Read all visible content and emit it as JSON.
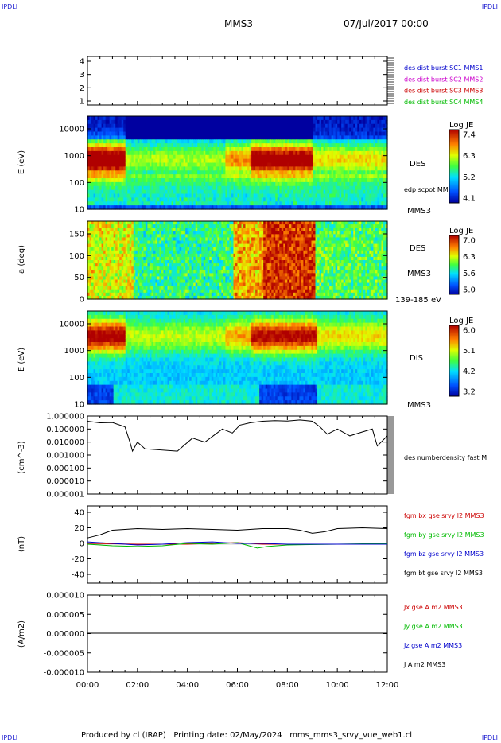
{
  "corner_label": "IPDLI",
  "header": {
    "mission": "MMS3",
    "datetime": "07/Jul/2017 00:00"
  },
  "footer": {
    "text": "Produced by cl (IRAP)   Printing date: 02/May/2024   mms_mms3_srvy_vue_web1.cl"
  },
  "chart_data": [
    {
      "type": "line",
      "panel": "burst-indicator",
      "ylabel": "",
      "ylim": [
        0.5,
        4.5
      ],
      "yticks": [
        "4",
        "3",
        "2",
        "1"
      ],
      "legend": [
        {
          "label": "des dist burst SC1 MMS1",
          "color": "#0000cc"
        },
        {
          "label": "des dist burst SC2 MMS2",
          "color": "#cc00cc"
        },
        {
          "label": "des dist burst SC3 MMS3",
          "color": "#cc0000"
        },
        {
          "label": "des dist burst SC4 MMS4",
          "color": "#00bb00"
        }
      ],
      "series": []
    },
    {
      "type": "heatmap",
      "panel": "des-energy-spectrogram",
      "ylabel": "E (eV)",
      "yscale": "log",
      "yticks": [
        "10000",
        "1000",
        "100",
        "10"
      ],
      "right_label": "DES",
      "right_label_2": "edp scpot MMS3",
      "bottom_right": "MMS3",
      "colorbar": {
        "title": "Log JE",
        "ticks": [
          "7.4",
          "6.3",
          "5.2",
          "4.1"
        ]
      }
    },
    {
      "type": "heatmap",
      "panel": "des-pitch-angle",
      "ylabel": "a (deg)",
      "yticks": [
        "150",
        "100",
        "50",
        "0"
      ],
      "ylim": [
        0,
        180
      ],
      "right_label": "DES",
      "right_label_2": "MMS3",
      "bottom_right": "139-185 eV",
      "colorbar": {
        "title": "Log JE",
        "ticks": [
          "7.0",
          "6.3",
          "5.6",
          "5.0"
        ]
      }
    },
    {
      "type": "heatmap",
      "panel": "dis-energy-spectrogram",
      "ylabel": "E (eV)",
      "yscale": "log",
      "yticks": [
        "10000",
        "1000",
        "100",
        "10"
      ],
      "right_label": "DIS",
      "bottom_right": "MMS3",
      "colorbar": {
        "title": "Log JE",
        "ticks": [
          "6.0",
          "5.1",
          "4.2",
          "3.2"
        ]
      }
    },
    {
      "type": "line",
      "panel": "des-density",
      "ylabel": "(cm^-3)",
      "yscale": "log",
      "yticks": [
        "1.000000",
        "0.100000",
        "0.010000",
        "0.001000",
        "0.000100",
        "0.000010",
        "0.000001"
      ],
      "legend": [
        {
          "label": "des numberdensity fast M",
          "color": "#000000"
        }
      ],
      "series": [
        {
          "x": [
            0,
            0.5,
            1.0,
            1.5,
            1.7,
            1.8,
            2.0,
            2.3,
            3.6,
            4.2,
            4.7,
            5.4,
            5.8,
            6.1,
            6.5,
            7.0,
            7.5,
            8.0,
            8.5,
            9.0,
            9.3,
            9.6,
            10.0,
            10.5,
            11.0,
            11.4,
            11.6,
            12.0
          ],
          "y": [
            0.4,
            0.3,
            0.32,
            0.15,
            0.01,
            0.002,
            0.01,
            0.003,
            0.002,
            0.02,
            0.01,
            0.1,
            0.05,
            0.2,
            0.3,
            0.4,
            0.45,
            0.42,
            0.5,
            0.4,
            0.15,
            0.04,
            0.1,
            0.03,
            0.06,
            0.1,
            0.005,
            0.03
          ]
        }
      ]
    },
    {
      "type": "line",
      "panel": "fgm-magnetic-field",
      "ylabel": "(nT)",
      "ylim": [
        -50,
        50
      ],
      "yticks": [
        "40",
        "20",
        "0",
        "-20",
        "-40"
      ],
      "legend": [
        {
          "label": "fgm bx gse srvy l2 MMS3",
          "color": "#cc0000"
        },
        {
          "label": "fgm by gse srvy l2 MMS3",
          "color": "#00bb00"
        },
        {
          "label": "fgm bz gse srvy l2 MMS3",
          "color": "#0000cc"
        },
        {
          "label": "fgm bt gse srvy l2 MMS3",
          "color": "#000000"
        }
      ],
      "series": [
        {
          "name": "fgm bt gse srvy l2 MMS3",
          "color": "#000000",
          "x": [
            0,
            0.5,
            1.0,
            1.5,
            2.0,
            3.0,
            4.0,
            5.0,
            6.0,
            6.5,
            7.0,
            7.5,
            8.0,
            8.5,
            9.0,
            9.5,
            10.0,
            11.0,
            12.0
          ],
          "y": [
            8,
            12,
            18,
            19,
            20,
            19,
            20,
            19,
            18,
            19,
            20,
            20,
            20,
            18,
            14,
            16,
            20,
            21,
            20
          ]
        },
        {
          "name": "fgm bx gse srvy l2 MMS3",
          "color": "#cc0000",
          "x": [
            0,
            2,
            4,
            6,
            7,
            8,
            10,
            12
          ],
          "y": [
            1,
            0,
            0,
            2,
            0,
            0,
            0,
            0
          ]
        },
        {
          "name": "fgm by gse srvy l2 MMS3",
          "color": "#00bb00",
          "x": [
            0,
            1,
            2,
            3,
            4,
            5,
            6,
            6.8,
            7.2,
            8,
            10,
            12
          ],
          "y": [
            0,
            -2,
            -3,
            -2,
            1,
            0,
            2,
            -5,
            -3,
            -1,
            0,
            1
          ]
        },
        {
          "name": "fgm bz gse srvy l2 MMS3",
          "color": "#0000cc",
          "x": [
            0,
            1,
            2,
            3,
            4,
            5,
            6,
            7,
            8,
            10,
            12
          ],
          "y": [
            3,
            1,
            -1,
            0,
            2,
            3,
            1,
            1,
            0,
            0,
            0
          ]
        }
      ]
    },
    {
      "type": "line",
      "panel": "current-density",
      "ylabel": "(A/m2)",
      "ylim": [
        -1e-05,
        1e-05
      ],
      "yticks": [
        "0.000010",
        "0.000005",
        "0.000000",
        "-0.000005",
        "-0.000010"
      ],
      "legend": [
        {
          "label": "Jx gse A m2 MMS3",
          "color": "#cc0000"
        },
        {
          "label": "Jy gse A m2 MMS3",
          "color": "#00bb00"
        },
        {
          "label": "Jz gse A m2 MMS3",
          "color": "#0000cc"
        },
        {
          "label": "J A m2 MMS3",
          "color": "#000000"
        }
      ],
      "series": [
        {
          "name": "J A m2 MMS3",
          "color": "#000000",
          "x": [
            0,
            12
          ],
          "y": [
            0,
            0
          ]
        }
      ]
    }
  ],
  "x_axis": {
    "tick_labels": [
      "00:00",
      "02:00",
      "04:00",
      "06:00",
      "08:00",
      "10:00",
      "12:00"
    ],
    "xlim": [
      0,
      12
    ]
  }
}
